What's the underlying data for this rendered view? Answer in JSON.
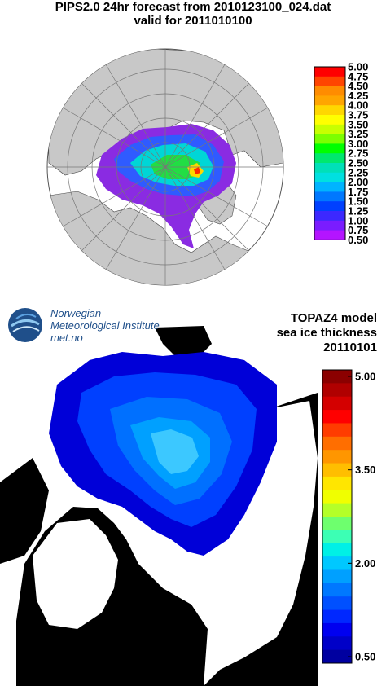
{
  "pips": {
    "title": "PIPS2.0 24hr forecast from 2010123100_024.dat",
    "subtitle": "valid for 2011010100",
    "colorbar": {
      "labels": [
        "5.00",
        "4.75",
        "4.50",
        "4.25",
        "4.00",
        "3.75",
        "3.50",
        "3.25",
        "3.00",
        "2.75",
        "2.50",
        "2.25",
        "2.00",
        "1.75",
        "1.50",
        "1.25",
        "1.00",
        "0.75",
        "0.50"
      ],
      "colors": [
        "#ff0000",
        "#ff4500",
        "#ff8c00",
        "#ffa500",
        "#ffd700",
        "#ffff00",
        "#c8ff00",
        "#7cff00",
        "#00ff00",
        "#00e86e",
        "#00e0b8",
        "#00e0e0",
        "#00b4ff",
        "#0078ff",
        "#0040ff",
        "#3c28ff",
        "#7a1cff",
        "#b414ff",
        "#ff00ff"
      ]
    }
  },
  "topaz": {
    "logo_line1": "Norwegian",
    "logo_line2": "Meteorological Institute",
    "logo_line3": "met.no",
    "title_line1": "TOPAZ4 model",
    "title_line2": "sea ice thickness",
    "title_line3": "20110101",
    "colorbar": {
      "labels": [
        "5.00",
        "3.50",
        "2.00",
        "0.50"
      ],
      "colors": [
        "#8b0000",
        "#b00000",
        "#d40000",
        "#ff0000",
        "#ff3c00",
        "#ff6e00",
        "#ff9600",
        "#ffbe00",
        "#ffe600",
        "#f0ff00",
        "#b4ff28",
        "#6eff6e",
        "#3cffb4",
        "#00f0e6",
        "#00c8ff",
        "#00a0ff",
        "#0078ff",
        "#0050ff",
        "#0028ff",
        "#0000f0",
        "#0000c8",
        "#0000a0"
      ]
    }
  }
}
